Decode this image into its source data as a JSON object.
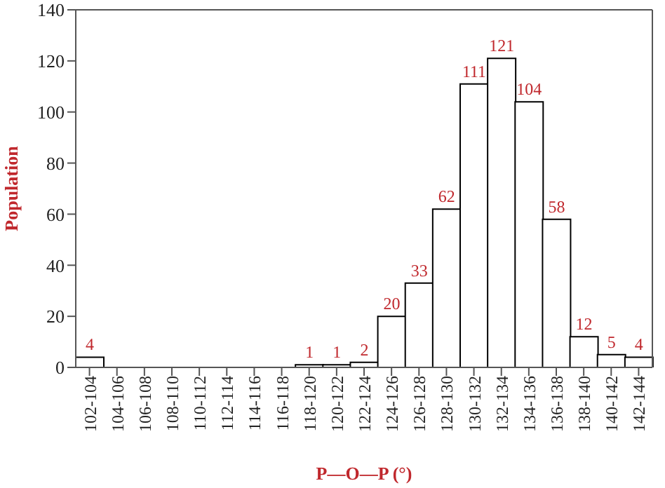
{
  "chart_data": {
    "type": "bar",
    "xlabel": "P—O—P (°)",
    "ylabel": "Population",
    "categories": [
      "102-104",
      "104-106",
      "106-108",
      "108-110",
      "110-112",
      "112-114",
      "114-116",
      "116-118",
      "118-120",
      "120-122",
      "122-124",
      "124-126",
      "126-128",
      "128-130",
      "130-132",
      "132-134",
      "134-136",
      "136-138",
      "138-140",
      "140-142",
      "142-144"
    ],
    "values": [
      4,
      0,
      0,
      0,
      0,
      0,
      0,
      0,
      1,
      1,
      2,
      20,
      33,
      62,
      111,
      121,
      104,
      58,
      12,
      5,
      4
    ],
    "value_labels": [
      "4",
      null,
      null,
      null,
      null,
      null,
      null,
      null,
      "1",
      "1",
      "2",
      "20",
      "33",
      "62",
      "111",
      "121",
      "104",
      "58",
      "12",
      "5",
      "4"
    ],
    "color": "#ffffff",
    "ylim": [
      0,
      140
    ],
    "yticks": [
      0,
      20,
      40,
      60,
      80,
      100,
      120,
      140
    ],
    "grid": false
  }
}
